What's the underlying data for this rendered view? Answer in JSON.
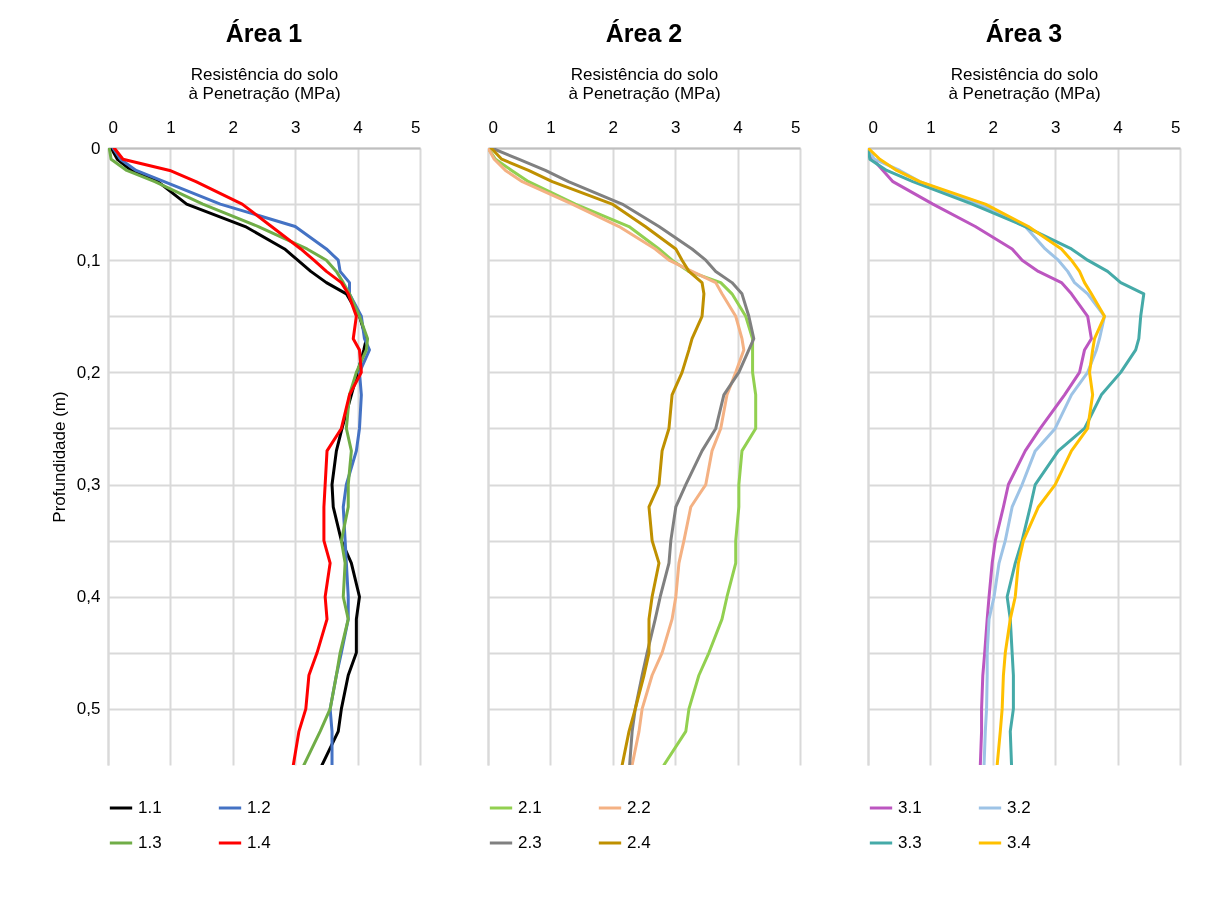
{
  "chart_data": [
    {
      "type": "line",
      "title": "Área 1",
      "xlabel": "Resistência do solo à Penetração (MPa)",
      "ylabel": "Profundidade (m)",
      "xlim": [
        0,
        5
      ],
      "xticks": [
        0,
        1,
        2,
        3,
        4,
        5
      ],
      "ylim": [
        0.55,
        0
      ],
      "yticks": [
        0,
        {
          "value": 0.05,
          "label": null
        },
        {
          "value": 0.1,
          "label": "0,1"
        },
        {
          "value": 0.15,
          "label": null
        },
        {
          "value": 0.2,
          "label": "0,2"
        },
        {
          "value": 0.25,
          "label": null
        },
        {
          "value": 0.3,
          "label": "0,3"
        },
        {
          "value": 0.35,
          "label": null
        },
        {
          "value": 0.4,
          "label": "0,4"
        },
        {
          "value": 0.45,
          "label": null
        },
        {
          "value": 0.5,
          "label": "0,5"
        }
      ],
      "grid": true,
      "legend": "bottom",
      "series": [
        {
          "name": "1.1",
          "color": "#000000",
          "x": [
            0.05,
            0.15,
            0.37,
            0.8,
            1.26,
            2.2,
            2.83,
            3.04,
            3.25,
            3.5,
            3.82,
            4.03,
            4.14,
            4.1,
            4.0,
            3.9,
            3.75,
            3.66,
            3.59,
            3.61,
            3.74,
            3.9,
            4.03,
            3.98,
            3.98,
            3.85,
            3.74,
            3.69,
            3.43
          ],
          "values": [
            0,
            0.01,
            0.02,
            0.03,
            0.05,
            0.07,
            0.09,
            0.1,
            0.11,
            0.12,
            0.13,
            0.15,
            0.17,
            0.18,
            0.2,
            0.22,
            0.25,
            0.27,
            0.3,
            0.32,
            0.35,
            0.37,
            0.4,
            0.42,
            0.45,
            0.47,
            0.5,
            0.52,
            0.55
          ]
        },
        {
          "name": "1.2",
          "color": "#4472c4",
          "x": [
            0.08,
            0.2,
            0.45,
            0.9,
            1.8,
            3.0,
            3.5,
            3.69,
            3.72,
            3.87,
            3.87,
            4.06,
            4.11,
            4.19,
            4.03,
            4.06,
            4.03,
            3.98,
            3.82,
            3.77,
            3.8,
            3.82,
            3.85,
            3.85,
            3.74,
            3.66,
            3.56,
            3.59,
            3.59
          ],
          "values": [
            0,
            0.01,
            0.02,
            0.03,
            0.05,
            0.07,
            0.09,
            0.1,
            0.11,
            0.12,
            0.13,
            0.15,
            0.17,
            0.18,
            0.2,
            0.22,
            0.25,
            0.27,
            0.3,
            0.32,
            0.35,
            0.37,
            0.4,
            0.42,
            0.45,
            0.47,
            0.5,
            0.52,
            0.55
          ]
        },
        {
          "name": "1.3",
          "color": "#70ad47",
          "x": [
            0.02,
            0.05,
            0.3,
            0.75,
            1.52,
            2.41,
            3.19,
            3.5,
            3.66,
            3.77,
            3.87,
            4.03,
            4.16,
            4.14,
            3.98,
            3.87,
            3.82,
            3.9,
            3.85,
            3.85,
            3.74,
            3.8,
            3.77,
            3.85,
            3.72,
            3.66,
            3.56,
            3.4,
            3.14
          ],
          "values": [
            0,
            0.01,
            0.02,
            0.03,
            0.05,
            0.07,
            0.09,
            0.1,
            0.11,
            0.12,
            0.13,
            0.15,
            0.17,
            0.18,
            0.2,
            0.22,
            0.25,
            0.27,
            0.3,
            0.32,
            0.35,
            0.37,
            0.4,
            0.42,
            0.45,
            0.47,
            0.5,
            0.52,
            0.55
          ]
        },
        {
          "name": "1.4",
          "color": "#ff0000",
          "x": [
            0.1,
            0.24,
            0.99,
            1.41,
            2.15,
            2.62,
            3.09,
            3.3,
            3.5,
            3.74,
            3.85,
            3.98,
            3.93,
            4.03,
            4.06,
            3.87,
            3.74,
            3.51,
            3.48,
            3.46,
            3.46,
            3.56,
            3.48,
            3.51,
            3.35,
            3.22,
            3.17,
            3.06,
            2.97
          ],
          "values": [
            0,
            0.01,
            0.02,
            0.03,
            0.05,
            0.07,
            0.09,
            0.1,
            0.11,
            0.12,
            0.13,
            0.15,
            0.17,
            0.18,
            0.2,
            0.22,
            0.25,
            0.27,
            0.3,
            0.32,
            0.35,
            0.37,
            0.4,
            0.42,
            0.45,
            0.47,
            0.5,
            0.52,
            0.55
          ]
        }
      ]
    },
    {
      "type": "line",
      "title": "Área 2",
      "xlabel": "Resistência do solo à Penetração (MPa)",
      "xlim": [
        0,
        5
      ],
      "xticks": [
        0,
        1,
        2,
        3,
        4,
        5
      ],
      "ylim": [
        0.55,
        0
      ],
      "yticks": [
        0,
        0.05,
        0.1,
        0.15,
        0.2,
        0.25,
        0.3,
        0.35,
        0.4,
        0.45,
        0.5
      ],
      "tick_labels": "x",
      "grid": true,
      "legend": "bottom",
      "series": [
        {
          "name": "2.1",
          "color": "#92d050",
          "x": [
            0,
            0.12,
            0.38,
            0.65,
            1.4,
            2.26,
            2.74,
            2.95,
            3.22,
            3.73,
            3.91,
            4.13,
            4.24,
            4.24,
            4.24,
            4.29,
            4.29,
            4.07,
            4.02,
            4.02,
            3.97,
            3.97,
            3.83,
            3.75,
            3.54,
            3.38,
            3.22,
            3.17,
            2.82
          ],
          "values": [
            0,
            0.01,
            0.02,
            0.03,
            0.05,
            0.07,
            0.09,
            0.1,
            0.11,
            0.12,
            0.13,
            0.15,
            0.17,
            0.18,
            0.2,
            0.22,
            0.25,
            0.27,
            0.3,
            0.32,
            0.35,
            0.37,
            0.4,
            0.42,
            0.45,
            0.47,
            0.5,
            0.52,
            0.55
          ]
        },
        {
          "name": "2.2",
          "color": "#f4b183",
          "x": [
            0,
            0.1,
            0.28,
            0.55,
            1.35,
            2.1,
            2.68,
            2.9,
            3.27,
            3.65,
            3.75,
            3.97,
            4.07,
            4.1,
            3.97,
            3.83,
            3.73,
            3.59,
            3.49,
            3.25,
            3.14,
            3.06,
            3.01,
            2.95,
            2.79,
            2.63,
            2.47,
            2.42,
            2.31
          ],
          "values": [
            0,
            0.01,
            0.02,
            0.03,
            0.05,
            0.07,
            0.09,
            0.1,
            0.11,
            0.12,
            0.13,
            0.15,
            0.17,
            0.18,
            0.2,
            0.22,
            0.25,
            0.27,
            0.3,
            0.32,
            0.35,
            0.37,
            0.4,
            0.42,
            0.45,
            0.47,
            0.5,
            0.52,
            0.55
          ]
        },
        {
          "name": "2.3",
          "color": "#808080",
          "x": [
            0.06,
            0.49,
            0.92,
            1.29,
            2.15,
            2.74,
            3.27,
            3.49,
            3.65,
            3.91,
            4.07,
            4.18,
            4.26,
            4.18,
            4.02,
            3.78,
            3.65,
            3.43,
            3.17,
            3.01,
            2.93,
            2.9,
            2.76,
            2.68,
            2.55,
            2.47,
            2.36,
            2.31,
            2.27
          ],
          "values": [
            0,
            0.01,
            0.02,
            0.03,
            0.05,
            0.07,
            0.09,
            0.1,
            0.11,
            0.12,
            0.13,
            0.15,
            0.17,
            0.18,
            0.2,
            0.22,
            0.25,
            0.27,
            0.3,
            0.32,
            0.35,
            0.37,
            0.4,
            0.42,
            0.45,
            0.47,
            0.5,
            0.52,
            0.55
          ]
        },
        {
          "name": "2.4",
          "color": "#bf9000",
          "x": [
            0.05,
            0.22,
            0.65,
            1.03,
            1.99,
            2.52,
            3.01,
            3.11,
            3.22,
            3.43,
            3.46,
            3.43,
            3.27,
            3.22,
            3.11,
            2.95,
            2.9,
            2.79,
            2.74,
            2.58,
            2.63,
            2.74,
            2.63,
            2.58,
            2.58,
            2.5,
            2.36,
            2.26,
            2.15
          ],
          "values": [
            0,
            0.01,
            0.02,
            0.03,
            0.05,
            0.07,
            0.09,
            0.1,
            0.11,
            0.12,
            0.13,
            0.15,
            0.17,
            0.18,
            0.2,
            0.22,
            0.25,
            0.27,
            0.3,
            0.32,
            0.35,
            0.37,
            0.4,
            0.42,
            0.45,
            0.47,
            0.5,
            0.52,
            0.55
          ]
        }
      ]
    },
    {
      "type": "line",
      "title": "Área 3",
      "xlabel": "Resistência do solo à Penetração (MPa)",
      "xlim": [
        0,
        5
      ],
      "xticks": [
        0,
        1,
        2,
        3,
        4,
        5
      ],
      "ylim": [
        0.55,
        0
      ],
      "yticks": [
        0,
        0.05,
        0.1,
        0.15,
        0.2,
        0.25,
        0.3,
        0.35,
        0.4,
        0.45,
        0.5
      ],
      "tick_labels": "x",
      "grid": true,
      "legend": "bottom",
      "series": [
        {
          "name": "3.1",
          "color": "#bc56c0",
          "x": [
            0,
            0.08,
            0.24,
            0.4,
            1.04,
            1.72,
            2.31,
            2.47,
            2.73,
            3.1,
            3.26,
            3.52,
            3.58,
            3.47,
            3.39,
            3.15,
            2.76,
            2.52,
            2.25,
            2.17,
            2.04,
            1.99,
            1.94,
            1.91,
            1.87,
            1.84,
            1.82,
            1.82,
            1.8
          ],
          "values": [
            0,
            0.01,
            0.02,
            0.03,
            0.05,
            0.07,
            0.09,
            0.1,
            0.11,
            0.12,
            0.13,
            0.15,
            0.17,
            0.18,
            0.2,
            0.22,
            0.25,
            0.27,
            0.3,
            0.32,
            0.35,
            0.37,
            0.4,
            0.42,
            0.45,
            0.47,
            0.5,
            0.52,
            0.55
          ]
        },
        {
          "name": "3.2",
          "color": "#9dc3e6",
          "x": [
            0,
            0.1,
            0.51,
            0.83,
            1.78,
            2.52,
            2.84,
            3.05,
            3.2,
            3.31,
            3.52,
            3.79,
            3.71,
            3.66,
            3.52,
            3.26,
            3.0,
            2.68,
            2.47,
            2.31,
            2.2,
            2.1,
            2.02,
            1.94,
            1.91,
            1.91,
            1.9,
            1.88,
            1.86
          ],
          "values": [
            0,
            0.01,
            0.02,
            0.03,
            0.05,
            0.07,
            0.09,
            0.1,
            0.11,
            0.12,
            0.13,
            0.15,
            0.17,
            0.18,
            0.2,
            0.22,
            0.25,
            0.27,
            0.3,
            0.32,
            0.35,
            0.37,
            0.4,
            0.42,
            0.45,
            0.47,
            0.5,
            0.52,
            0.55
          ]
        },
        {
          "name": "3.3",
          "color": "#45aaa8",
          "x": [
            0,
            0.03,
            0.3,
            0.72,
            1.67,
            2.52,
            3.26,
            3.52,
            3.84,
            4.05,
            4.42,
            4.37,
            4.34,
            4.29,
            4.05,
            3.74,
            3.47,
            3.05,
            2.68,
            2.6,
            2.47,
            2.36,
            2.23,
            2.28,
            2.31,
            2.33,
            2.33,
            2.28,
            2.3
          ],
          "values": [
            0,
            0.01,
            0.02,
            0.03,
            0.05,
            0.07,
            0.09,
            0.1,
            0.11,
            0.12,
            0.13,
            0.15,
            0.17,
            0.18,
            0.2,
            0.22,
            0.25,
            0.27,
            0.3,
            0.32,
            0.35,
            0.37,
            0.4,
            0.42,
            0.45,
            0.47,
            0.5,
            0.52,
            0.55
          ]
        },
        {
          "name": "3.4",
          "color": "#ffc000",
          "x": [
            0,
            0.19,
            0.46,
            0.83,
            1.88,
            2.57,
            3.1,
            3.26,
            3.39,
            3.47,
            3.58,
            3.79,
            3.63,
            3.6,
            3.55,
            3.6,
            3.52,
            3.26,
            3.0,
            2.73,
            2.49,
            2.41,
            2.36,
            2.28,
            2.2,
            2.17,
            2.15,
            2.12,
            2.07
          ],
          "values": [
            0,
            0.01,
            0.02,
            0.03,
            0.05,
            0.07,
            0.09,
            0.1,
            0.11,
            0.12,
            0.13,
            0.15,
            0.17,
            0.18,
            0.2,
            0.22,
            0.25,
            0.27,
            0.3,
            0.32,
            0.35,
            0.37,
            0.4,
            0.42,
            0.45,
            0.47,
            0.5,
            0.52,
            0.55
          ]
        }
      ]
    }
  ]
}
